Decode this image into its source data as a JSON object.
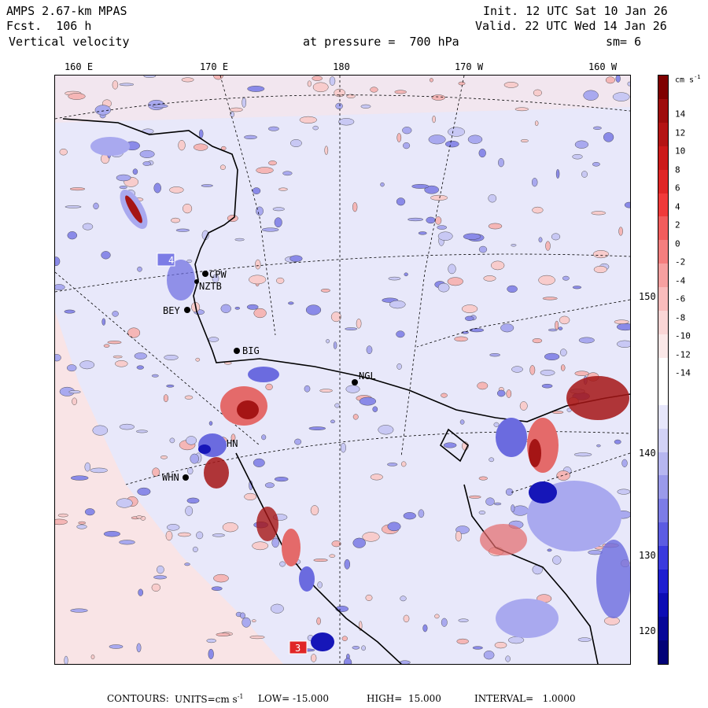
{
  "header": {
    "model": "AMPS 2.67-km MPAS",
    "forecast": "Fcst.  106 h",
    "field": " Vertical velocity",
    "init": "Init. 12 UTC Sat 10 Jan 26",
    "valid": "Valid. 22 UTC Wed 14 Jan 26",
    "pressure_label": "at pressure =  700 hPa",
    "smoothing": "sm= 6"
  },
  "longitude_labels": [
    "160 E",
    "170 E",
    "180",
    "170 W",
    "160 W"
  ],
  "latitude_labels": [
    "150 W",
    "140 W",
    "130 W",
    "120 W"
  ],
  "colorbar": {
    "units_label": "cm s",
    "units_exponent": "-1",
    "tick_labels": [
      "14",
      "12",
      "10",
      "8",
      "6",
      "4",
      "2",
      "0",
      "-2",
      "-4",
      "-6",
      "-8",
      "-10",
      "-12",
      "-14"
    ],
    "colors": [
      "#7f0000",
      "#9e0c0c",
      "#b41414",
      "#cc1a1a",
      "#e02626",
      "#f03a3a",
      "#f25c5c",
      "#f47e7e",
      "#f6a0a0",
      "#f8bcbc",
      "#fad6d6",
      "#fbe8e8",
      "#ffffff",
      "#ffffff",
      "#e6e6fb",
      "#d2d2f6",
      "#b6b6f0",
      "#9a9aea",
      "#7c7ce6",
      "#5c5ce2",
      "#3a3ade",
      "#1e1ed0",
      "#0c0cb4",
      "#060698",
      "#020278"
    ]
  },
  "stations": [
    {
      "id": "CPW"
    },
    {
      "id": "NZTB"
    },
    {
      "id": "BEY"
    },
    {
      "id": "BIG"
    },
    {
      "id": "NGL"
    },
    {
      "id": "HN"
    },
    {
      "id": "WHN"
    },
    {
      "id": "4"
    },
    {
      "id": "3"
    }
  ],
  "footer": {
    "contours": "CONTOURS:",
    "units": "UNITS=cm s",
    "units_exp": "-1",
    "low": "LOW= -15.000",
    "high": "HIGH=  15.000",
    "interval": "INTERVAL=   1.0000"
  },
  "map_colors": {
    "ice": "#e8e8fa",
    "ice_pale": "#fbe3e3",
    "red_light": "#f5b6b6",
    "red_mid": "#e46a6a",
    "red_dark": "#a51515",
    "blue_light": "#a9a9ef",
    "blue_mid": "#6b6bdf",
    "blue_dark": "#1616b8"
  }
}
